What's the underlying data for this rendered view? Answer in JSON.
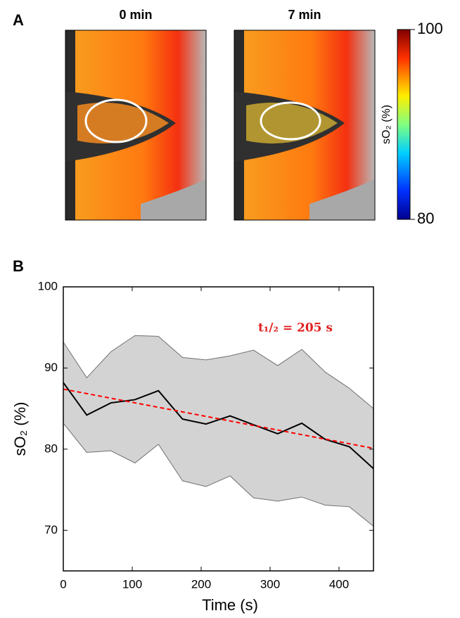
{
  "panel_a": {
    "label": "A",
    "titles": [
      "0 min",
      "7 min"
    ],
    "colorbar": {
      "label": "sO₂ (%)",
      "lim": [
        80,
        100
      ],
      "ticks": [
        80,
        100
      ]
    }
  },
  "chart_data": {
    "type": "line",
    "label": "B",
    "xlabel": "Time (s)",
    "ylabel": "sO₂ (%)",
    "annotation": "t₁/₂ = 205 s",
    "x": [
      0,
      34,
      69,
      104,
      138,
      173,
      207,
      242,
      276,
      311,
      346,
      380,
      415,
      450
    ],
    "series": [
      {
        "color": "#000000",
        "values": [
          88.2,
          84.2,
          85.7,
          86.1,
          87.2,
          83.7,
          83.1,
          84.1,
          83.0,
          81.9,
          83.2,
          81.2,
          80.3,
          77.6
        ]
      },
      {
        "color": "#d3d3d3",
        "values": [
          93.2,
          88.8,
          92.0,
          94.0,
          93.9,
          91.3,
          91.0,
          91.5,
          92.2,
          90.3,
          92.3,
          89.5,
          87.5,
          85.0
        ]
      },
      {
        "color": "#d3d3d3",
        "values": [
          83.2,
          79.6,
          79.8,
          78.3,
          80.6,
          76.1,
          75.4,
          76.7,
          74.0,
          73.6,
          74.1,
          73.1,
          72.9,
          70.5
        ]
      },
      {
        "color": "#ff0000",
        "values": [
          87.4,
          86.85,
          86.28,
          85.71,
          85.16,
          84.59,
          84.04,
          83.47,
          82.92,
          82.36,
          81.79,
          81.24,
          80.67,
          80.1
        ]
      }
    ],
    "xlim": [
      0,
      450
    ],
    "ylim": [
      65,
      100
    ],
    "xticks": [
      0,
      100,
      200,
      300,
      400
    ],
    "yticks": [
      70,
      80,
      90,
      100
    ]
  }
}
